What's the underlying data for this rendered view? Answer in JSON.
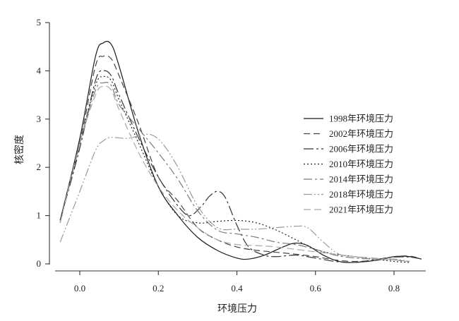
{
  "chart_data": {
    "type": "line",
    "xlabel": "环境压力",
    "ylabel": "核密度",
    "xlim": [
      -0.05,
      0.87
    ],
    "ylim": [
      0,
      5
    ],
    "xticks": [
      "0.0",
      "0.2",
      "0.4",
      "0.6",
      "0.8"
    ],
    "yticks": [
      "0",
      "1",
      "2",
      "3",
      "4",
      "5"
    ],
    "legend_position": "right",
    "grid": false,
    "series": [
      {
        "name": "1998年环境压力",
        "color": "#1a1a1a",
        "dash": "",
        "points": [
          [
            -0.05,
            0.9
          ],
          [
            0.0,
            2.6
          ],
          [
            0.04,
            4.3
          ],
          [
            0.06,
            4.58
          ],
          [
            0.08,
            4.55
          ],
          [
            0.1,
            4.1
          ],
          [
            0.15,
            2.7
          ],
          [
            0.2,
            1.6
          ],
          [
            0.25,
            1.0
          ],
          [
            0.3,
            0.55
          ],
          [
            0.35,
            0.28
          ],
          [
            0.4,
            0.12
          ],
          [
            0.43,
            0.1
          ],
          [
            0.47,
            0.18
          ],
          [
            0.52,
            0.36
          ],
          [
            0.55,
            0.43
          ],
          [
            0.58,
            0.38
          ],
          [
            0.62,
            0.18
          ],
          [
            0.66,
            0.05
          ],
          [
            0.7,
            0.03
          ],
          [
            0.76,
            0.08
          ],
          [
            0.8,
            0.15
          ],
          [
            0.84,
            0.15
          ],
          [
            0.87,
            0.1
          ]
        ]
      },
      {
        "name": "2002年环境压力",
        "color": "#444444",
        "dash": "9,5",
        "points": [
          [
            -0.05,
            0.9
          ],
          [
            0.0,
            2.5
          ],
          [
            0.04,
            4.1
          ],
          [
            0.06,
            4.3
          ],
          [
            0.08,
            4.25
          ],
          [
            0.1,
            3.9
          ],
          [
            0.15,
            2.9
          ],
          [
            0.2,
            1.8
          ],
          [
            0.25,
            1.3
          ],
          [
            0.3,
            0.75
          ],
          [
            0.35,
            0.5
          ],
          [
            0.4,
            0.35
          ],
          [
            0.45,
            0.28
          ],
          [
            0.5,
            0.24
          ],
          [
            0.55,
            0.2
          ],
          [
            0.6,
            0.15
          ],
          [
            0.65,
            0.08
          ],
          [
            0.7,
            0.05
          ],
          [
            0.76,
            0.08
          ],
          [
            0.8,
            0.15
          ],
          [
            0.84,
            0.16
          ],
          [
            0.87,
            0.1
          ]
        ]
      },
      {
        "name": "2006年环境压力",
        "color": "#333333",
        "dash": "14,4,3,4",
        "points": [
          [
            -0.05,
            0.9
          ],
          [
            0.0,
            2.4
          ],
          [
            0.04,
            3.8
          ],
          [
            0.06,
            4.0
          ],
          [
            0.08,
            3.9
          ],
          [
            0.1,
            3.5
          ],
          [
            0.15,
            2.6
          ],
          [
            0.2,
            1.8
          ],
          [
            0.25,
            1.2
          ],
          [
            0.28,
            1.0
          ],
          [
            0.31,
            1.2
          ],
          [
            0.33,
            1.4
          ],
          [
            0.35,
            1.5
          ],
          [
            0.37,
            1.38
          ],
          [
            0.4,
            0.8
          ],
          [
            0.43,
            0.35
          ],
          [
            0.47,
            0.18
          ],
          [
            0.5,
            0.15
          ],
          [
            0.55,
            0.18
          ],
          [
            0.6,
            0.12
          ],
          [
            0.65,
            0.05
          ],
          [
            0.7,
            0.03
          ],
          [
            0.76,
            0.1
          ],
          [
            0.8,
            0.14
          ],
          [
            0.84,
            0.14
          ],
          [
            0.87,
            0.1
          ]
        ]
      },
      {
        "name": "2010年环境压力",
        "color": "#222222",
        "dash": "2,3",
        "points": [
          [
            -0.05,
            0.85
          ],
          [
            0.0,
            2.5
          ],
          [
            0.04,
            3.7
          ],
          [
            0.06,
            3.88
          ],
          [
            0.08,
            3.8
          ],
          [
            0.1,
            3.4
          ],
          [
            0.15,
            2.5
          ],
          [
            0.2,
            1.6
          ],
          [
            0.25,
            1.0
          ],
          [
            0.3,
            0.85
          ],
          [
            0.35,
            0.88
          ],
          [
            0.4,
            0.9
          ],
          [
            0.45,
            0.85
          ],
          [
            0.5,
            0.7
          ],
          [
            0.55,
            0.5
          ],
          [
            0.6,
            0.3
          ],
          [
            0.65,
            0.2
          ],
          [
            0.7,
            0.15
          ],
          [
            0.75,
            0.1
          ],
          [
            0.8,
            0.05
          ],
          [
            0.84,
            0.03
          ]
        ]
      },
      {
        "name": "2014年环境压力",
        "color": "#7a7a7a",
        "dash": "12,4,3,4",
        "points": [
          [
            -0.05,
            0.85
          ],
          [
            0.0,
            2.5
          ],
          [
            0.04,
            3.6
          ],
          [
            0.06,
            3.75
          ],
          [
            0.08,
            3.7
          ],
          [
            0.1,
            3.3
          ],
          [
            0.15,
            2.8
          ],
          [
            0.2,
            2.3
          ],
          [
            0.25,
            1.75
          ],
          [
            0.3,
            1.1
          ],
          [
            0.35,
            0.7
          ],
          [
            0.4,
            0.62
          ],
          [
            0.45,
            0.55
          ],
          [
            0.5,
            0.45
          ],
          [
            0.55,
            0.4
          ],
          [
            0.6,
            0.3
          ],
          [
            0.65,
            0.18
          ],
          [
            0.7,
            0.12
          ],
          [
            0.75,
            0.1
          ],
          [
            0.8,
            0.08
          ],
          [
            0.84,
            0.05
          ]
        ]
      },
      {
        "name": "2018年环境压力",
        "color": "#9a9a9a",
        "dash": "12,3,2,3,2,3",
        "points": [
          [
            -0.05,
            0.45
          ],
          [
            0.0,
            1.5
          ],
          [
            0.04,
            2.35
          ],
          [
            0.06,
            2.55
          ],
          [
            0.08,
            2.62
          ],
          [
            0.12,
            2.6
          ],
          [
            0.15,
            2.65
          ],
          [
            0.18,
            2.68
          ],
          [
            0.21,
            2.5
          ],
          [
            0.25,
            2.0
          ],
          [
            0.3,
            1.2
          ],
          [
            0.35,
            0.75
          ],
          [
            0.4,
            0.72
          ],
          [
            0.45,
            0.72
          ],
          [
            0.5,
            0.75
          ],
          [
            0.55,
            0.78
          ],
          [
            0.58,
            0.75
          ],
          [
            0.62,
            0.45
          ],
          [
            0.66,
            0.2
          ],
          [
            0.7,
            0.15
          ],
          [
            0.75,
            0.1
          ],
          [
            0.8,
            0.1
          ],
          [
            0.84,
            0.05
          ]
        ]
      },
      {
        "name": "2021年环境压力",
        "color": "#a8a8a8",
        "dash": "10,5",
        "points": [
          [
            -0.05,
            0.85
          ],
          [
            0.0,
            2.5
          ],
          [
            0.04,
            3.5
          ],
          [
            0.06,
            3.68
          ],
          [
            0.08,
            3.6
          ],
          [
            0.1,
            3.2
          ],
          [
            0.15,
            2.3
          ],
          [
            0.2,
            1.6
          ],
          [
            0.25,
            1.1
          ],
          [
            0.3,
            0.75
          ],
          [
            0.35,
            0.5
          ],
          [
            0.4,
            0.4
          ],
          [
            0.45,
            0.38
          ],
          [
            0.5,
            0.35
          ],
          [
            0.55,
            0.3
          ],
          [
            0.6,
            0.25
          ],
          [
            0.65,
            0.2
          ],
          [
            0.7,
            0.15
          ],
          [
            0.75,
            0.12
          ],
          [
            0.8,
            0.08
          ],
          [
            0.84,
            0.05
          ]
        ]
      }
    ]
  }
}
